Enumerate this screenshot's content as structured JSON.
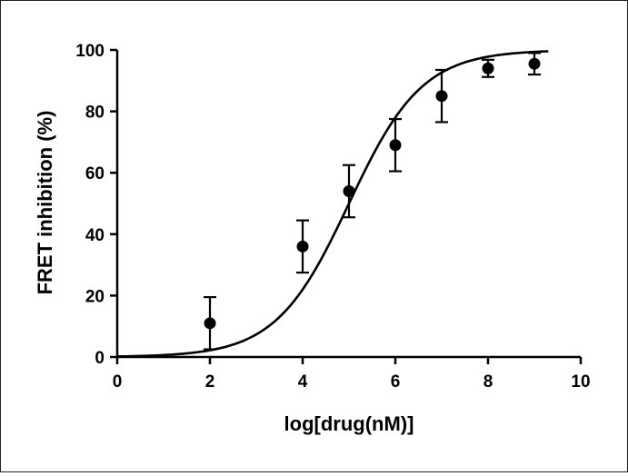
{
  "chart_data": {
    "type": "scatter",
    "title": "",
    "xlabel": "log[drug(nM)]",
    "ylabel": "FRET inhibition (%)",
    "xlim": [
      0,
      10
    ],
    "ylim": [
      0,
      100
    ],
    "x_ticks": [
      "0",
      "2",
      "4",
      "6",
      "8",
      "10"
    ],
    "y_ticks": [
      "0",
      "20",
      "40",
      "60",
      "80",
      "100"
    ],
    "grid": false,
    "legend": "none",
    "series": [
      {
        "points": [
          {
            "x": 2,
            "y": 11,
            "err": 8.5
          },
          {
            "x": 4,
            "y": 36,
            "err": 8.5
          },
          {
            "x": 5,
            "y": 54,
            "err": 8.5
          },
          {
            "x": 6,
            "y": 69,
            "err": 8.5
          },
          {
            "x": 7,
            "y": 85,
            "err": 8.5
          },
          {
            "x": 8,
            "y": 94,
            "err": 2.8
          },
          {
            "x": 9,
            "y": 95.5,
            "err": 3.5
          }
        ]
      }
    ],
    "fit_curve": {
      "model": "sigmoidal dose-response",
      "bottom": 0,
      "top": 100,
      "logEC50": 5.0,
      "hill_slope": 0.55
    },
    "marker_color": "#000000",
    "line_color": "#000000"
  }
}
